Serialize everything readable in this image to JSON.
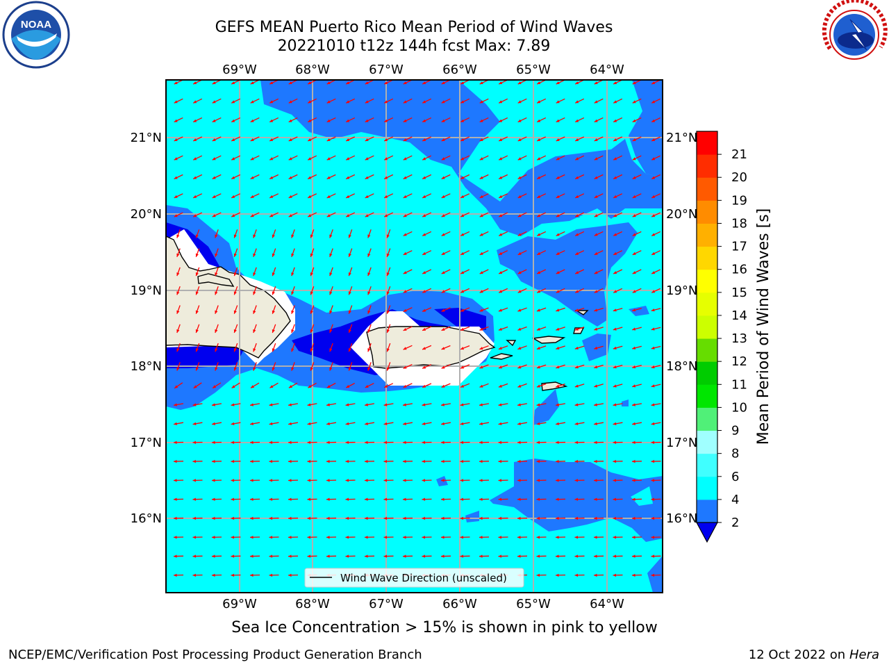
{
  "title_line1": "GEFS MEAN Puerto Rico Mean Period of Wind Waves",
  "title_line2": "20221010 t12z 144h fcst   Max: 7.89",
  "map": {
    "lon_labels": [
      "69°W",
      "68°W",
      "67°W",
      "66°W",
      "65°W",
      "64°W"
    ],
    "lat_labels": [
      "21°N",
      "20°N",
      "19°N",
      "18°N",
      "17°N",
      "16°N"
    ],
    "legend_label": "Wind Wave Direction (unscaled)",
    "colors": {
      "level_2_4": "#1e78ff",
      "level_4_6": "#00ffff",
      "below_2": "#0000ee",
      "land": "#eeecdc",
      "arrow": "#ff0000",
      "grid": "#b0b0b0"
    }
  },
  "colorbar": {
    "label": "Mean Period of Wind Waves [s]",
    "ticks": [
      "2",
      "4",
      "6",
      "8",
      "9",
      "10",
      "11",
      "12",
      "13",
      "14",
      "15",
      "16",
      "17",
      "18",
      "19",
      "20",
      "21"
    ],
    "colors": [
      "#1e78ff",
      "#00ffff",
      "#40ffff",
      "#a0ffff",
      "#50f078",
      "#00e600",
      "#00cc00",
      "#66dd00",
      "#ccff00",
      "#e6ff00",
      "#ffff00",
      "#ffd700",
      "#ffb000",
      "#ff8c00",
      "#ff5a00",
      "#ff2d00",
      "#ff0000"
    ],
    "under_color": "#0000ee"
  },
  "subtitle": "Sea Ice Concentration > 15% is shown in pink to yellow",
  "footer_left": "NCEP/EMC/Verification Post Processing Product Generation Branch",
  "footer_date": "12 Oct 2022 on ",
  "footer_host": "Hera",
  "logos": {
    "left": "NOAA",
    "right": "NATIONAL WEATHER SERVICE"
  }
}
